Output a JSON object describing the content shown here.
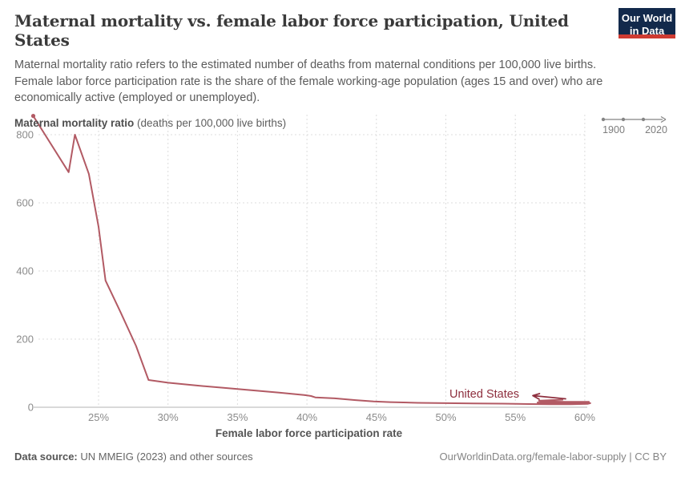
{
  "header": {
    "title": "Maternal mortality vs. female labor force participation, United States",
    "subtitle": "Maternal mortality ratio refers to the estimated number of deaths from maternal conditions per 100,000 live births. Female labor force participation rate is the share of the female working-age population (ages 15 and over) who are economically active (employed or unemployed).",
    "logo": {
      "line1": "Our World",
      "line2": "in Data"
    }
  },
  "timeline": {
    "start": "1900",
    "end": "2020"
  },
  "axis": {
    "y_title_bold": "Maternal mortality ratio",
    "y_title_rest": " (deaths per 100,000 live births)",
    "x_title": "Female labor force participation rate"
  },
  "entity": {
    "label": "United States"
  },
  "footer": {
    "source_label": "Data source:",
    "source_text": " UN MMEIG (2023) and other sources",
    "link_text": "OurWorldinData.org/female-labor-supply | CC BY"
  },
  "colors": {
    "line": "#B25A64",
    "entity_label": "#8E2F3E",
    "grid": "#dcdcdc",
    "axis_line": "#b3b3b3",
    "tick_text": "#8b8b8b",
    "timeline": "#858585",
    "logo_bg": "#12294B",
    "logo_accent": "#CE3B32"
  },
  "chart_data": {
    "type": "line",
    "title": "Maternal mortality vs. female labor force participation, United States",
    "xlabel": "Female labor force participation rate",
    "ylabel": "Maternal mortality ratio (deaths per 100,000 live births)",
    "xlim": [
      20.1,
      60.9
    ],
    "ylim": [
      0,
      860
    ],
    "grid": true,
    "legend_position": "inline-end-label",
    "x_tick_values": [
      25,
      30,
      35,
      40,
      45,
      50,
      55,
      60
    ],
    "x_tick_labels": [
      "25%",
      "30%",
      "35%",
      "40%",
      "45%",
      "50%",
      "55%",
      "60%"
    ],
    "y_tick_values": [
      0,
      200,
      400,
      600,
      800
    ],
    "time_range": [
      "1900",
      "2020"
    ],
    "series": [
      {
        "name": "United States",
        "x_unit": "% female labor force participation",
        "y_unit": "deaths per 100,000 live births",
        "points": [
          [
            20.3,
            855
          ],
          [
            22.85,
            690
          ],
          [
            23.3,
            800
          ],
          [
            24.3,
            685
          ],
          [
            25.0,
            530
          ],
          [
            25.5,
            372
          ],
          [
            26.6,
            278
          ],
          [
            27.7,
            180
          ],
          [
            28.6,
            80
          ],
          [
            30.0,
            72
          ],
          [
            32.0,
            64
          ],
          [
            34.0,
            57
          ],
          [
            36.0,
            50
          ],
          [
            38.0,
            43
          ],
          [
            39.8,
            36
          ],
          [
            40.3,
            33
          ],
          [
            40.6,
            29
          ],
          [
            42.0,
            26
          ],
          [
            43.5,
            21
          ],
          [
            44.8,
            17
          ],
          [
            46.0,
            15
          ],
          [
            48.0,
            13
          ],
          [
            50.0,
            12
          ],
          [
            52.0,
            11
          ],
          [
            54.0,
            10.5
          ],
          [
            56.0,
            9.5
          ],
          [
            57.5,
            9
          ],
          [
            59.0,
            9
          ],
          [
            60.2,
            10
          ],
          [
            60.4,
            12
          ],
          [
            59.2,
            12
          ],
          [
            57.6,
            12.5
          ],
          [
            56.6,
            14
          ],
          [
            57.6,
            15
          ],
          [
            59.6,
            15
          ],
          [
            60.3,
            16
          ],
          [
            58.6,
            16
          ],
          [
            57.1,
            17
          ],
          [
            56.7,
            19
          ],
          [
            57.6,
            21
          ],
          [
            58.4,
            22
          ]
        ]
      }
    ]
  }
}
